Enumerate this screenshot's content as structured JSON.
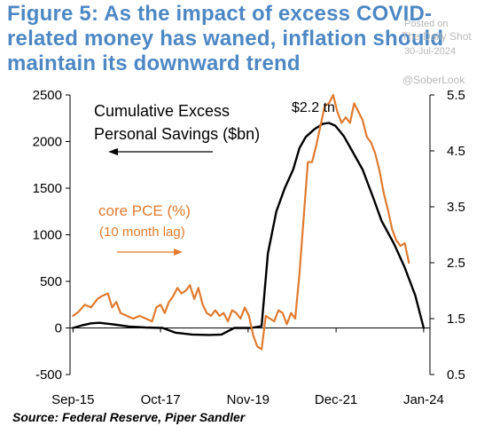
{
  "title": "Figure 5: As the impact of excess COVID-related money has waned, inflation should maintain its downward trend",
  "watermark": {
    "posted": "Posted on",
    "site": "The Daily Shot",
    "date": "30-Jul-2024",
    "handle": "@SoberLook"
  },
  "source": "Source: Federal Reserve,  Piper Sandler",
  "colors": {
    "title": "#4d88c4",
    "savings": "#000000",
    "pce": "#e07b2f"
  },
  "chart_data": {
    "type": "line",
    "x_ticks": [
      "Sep-15",
      "Oct-17",
      "Nov-19",
      "Dec-21",
      "Jan-24"
    ],
    "x_tick_decimal_years": [
      2015.67,
      2017.75,
      2019.83,
      2021.92,
      2024.0
    ],
    "xlim": [
      2015.6,
      2024.15
    ],
    "left_axis": {
      "ticks": [
        2500,
        2000,
        1500,
        1000,
        500,
        0,
        -500
      ],
      "ylim": [
        -500,
        2500
      ]
    },
    "right_axis": {
      "ticks": [
        5.5,
        4.5,
        3.5,
        2.5,
        1.5,
        0.5
      ],
      "ylim": [
        0.5,
        5.5
      ]
    },
    "annotations": {
      "peak": "$2.2 tn",
      "savings_label_1": "Cumulative Excess",
      "savings_label_2": "Personal Savings ($bn)",
      "pce_label_1": "core PCE (%)",
      "pce_label_2": "(10 month lag)"
    },
    "series": [
      {
        "name": "Cumulative Excess Personal Savings ($bn)",
        "axis": "left",
        "x": [
          2015.67,
          2015.9,
          2016.1,
          2016.3,
          2016.6,
          2017.0,
          2017.4,
          2017.8,
          2018.1,
          2018.5,
          2018.9,
          2019.2,
          2019.5,
          2019.9,
          2020.15,
          2020.3,
          2020.5,
          2020.7,
          2020.9,
          2021.05,
          2021.2,
          2021.4,
          2021.6,
          2021.75,
          2021.9,
          2022.1,
          2022.3,
          2022.55,
          2022.8,
          2023.0,
          2023.3,
          2023.55,
          2023.8,
          2024.0
        ],
        "y": [
          0,
          30,
          50,
          55,
          40,
          15,
          5,
          0,
          -50,
          -70,
          -75,
          -70,
          0,
          0,
          20,
          800,
          1250,
          1500,
          1700,
          1930,
          2050,
          2130,
          2190,
          2200,
          2170,
          2060,
          1900,
          1700,
          1400,
          1150,
          900,
          650,
          350,
          0
        ]
      },
      {
        "name": "core PCE (%)",
        "axis": "right",
        "x": [
          2015.67,
          2015.8,
          2015.95,
          2016.1,
          2016.25,
          2016.35,
          2016.5,
          2016.6,
          2016.7,
          2016.8,
          2016.95,
          2017.1,
          2017.25,
          2017.4,
          2017.55,
          2017.65,
          2017.75,
          2017.85,
          2017.95,
          2018.05,
          2018.15,
          2018.25,
          2018.35,
          2018.45,
          2018.55,
          2018.65,
          2018.75,
          2018.85,
          2018.95,
          2019.05,
          2019.15,
          2019.25,
          2019.35,
          2019.45,
          2019.55,
          2019.65,
          2019.75,
          2019.85,
          2019.95,
          2020.05,
          2020.15,
          2020.25,
          2020.35,
          2020.45,
          2020.55,
          2020.65,
          2020.75,
          2020.85,
          2020.95,
          2021.05,
          2021.15,
          2021.25,
          2021.35,
          2021.45,
          2021.55,
          2021.65,
          2021.75,
          2021.85,
          2021.95,
          2022.05,
          2022.15,
          2022.25,
          2022.35,
          2022.45,
          2022.55,
          2022.65,
          2022.75,
          2022.85,
          2022.95,
          2023.05,
          2023.15,
          2023.25,
          2023.35,
          2023.45,
          2023.55,
          2023.65
        ],
        "y": [
          1.55,
          1.62,
          1.75,
          1.7,
          1.85,
          1.9,
          1.95,
          1.7,
          1.8,
          1.6,
          1.55,
          1.5,
          1.55,
          1.5,
          1.45,
          1.7,
          1.75,
          1.6,
          1.8,
          1.9,
          2.05,
          1.95,
          2.0,
          2.1,
          1.85,
          2.05,
          1.75,
          1.6,
          1.55,
          1.65,
          1.55,
          1.6,
          1.45,
          1.65,
          1.6,
          1.5,
          1.7,
          1.55,
          1.2,
          1.0,
          0.95,
          1.55,
          1.5,
          1.45,
          1.65,
          1.6,
          1.4,
          1.6,
          1.5,
          2.3,
          3.3,
          4.3,
          4.3,
          4.6,
          4.95,
          5.3,
          5.35,
          5.5,
          5.2,
          5.0,
          5.1,
          5.0,
          5.35,
          5.2,
          5.05,
          4.75,
          4.65,
          4.45,
          4.15,
          3.75,
          3.45,
          3.1,
          2.9,
          2.8,
          2.85,
          2.5
        ]
      }
    ]
  }
}
